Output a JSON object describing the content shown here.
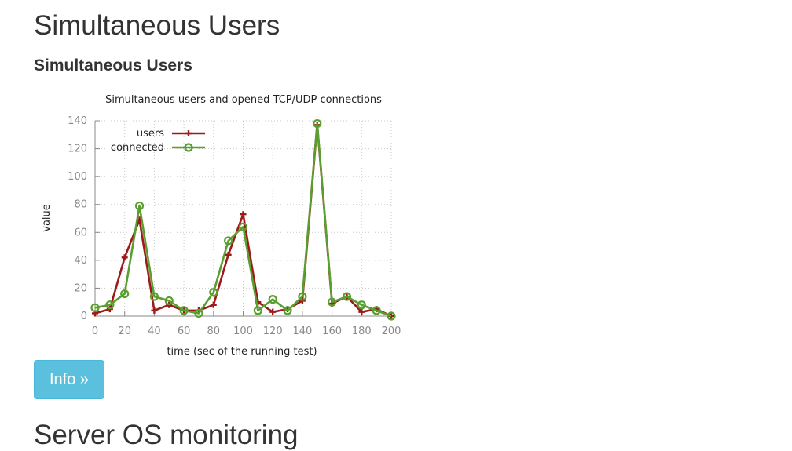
{
  "page": {
    "title": "Simultaneous Users",
    "section_title": "Simultaneous Users",
    "info_button_label": "Info »",
    "next_section_title": "Server OS monitoring"
  },
  "colors": {
    "users": "#9b1b1b",
    "connected": "#5a9e2f",
    "button": "#5bc0de"
  },
  "chart_data": {
    "type": "line",
    "title": "Simultaneous users and opened TCP/UDP connections",
    "xlabel": "time (sec of the running test)",
    "ylabel": "value",
    "xlim": [
      0,
      200
    ],
    "ylim": [
      0,
      140
    ],
    "xticks": [
      0,
      20,
      40,
      60,
      80,
      100,
      120,
      140,
      160,
      180,
      200
    ],
    "yticks": [
      0,
      20,
      40,
      60,
      80,
      100,
      120,
      140
    ],
    "grid": true,
    "legend_position": "top-left",
    "series": [
      {
        "name": "users",
        "marker": "plus",
        "x": [
          0,
          10,
          20,
          30,
          40,
          50,
          60,
          70,
          80,
          90,
          100,
          110,
          120,
          130,
          140,
          150,
          160,
          170,
          180,
          190,
          200
        ],
        "y": [
          2,
          5,
          42,
          69,
          4,
          8,
          4,
          4,
          8,
          44,
          73,
          10,
          3,
          5,
          11,
          137,
          9,
          14,
          3,
          5,
          0
        ]
      },
      {
        "name": "connected",
        "marker": "circle",
        "x": [
          0,
          10,
          20,
          30,
          40,
          50,
          60,
          70,
          80,
          90,
          100,
          110,
          120,
          130,
          140,
          150,
          160,
          170,
          180,
          190,
          200
        ],
        "y": [
          6,
          8,
          16,
          79,
          14,
          11,
          4,
          2,
          17,
          54,
          64,
          4,
          12,
          4,
          14,
          138,
          10,
          14,
          8,
          4,
          0
        ]
      }
    ]
  }
}
